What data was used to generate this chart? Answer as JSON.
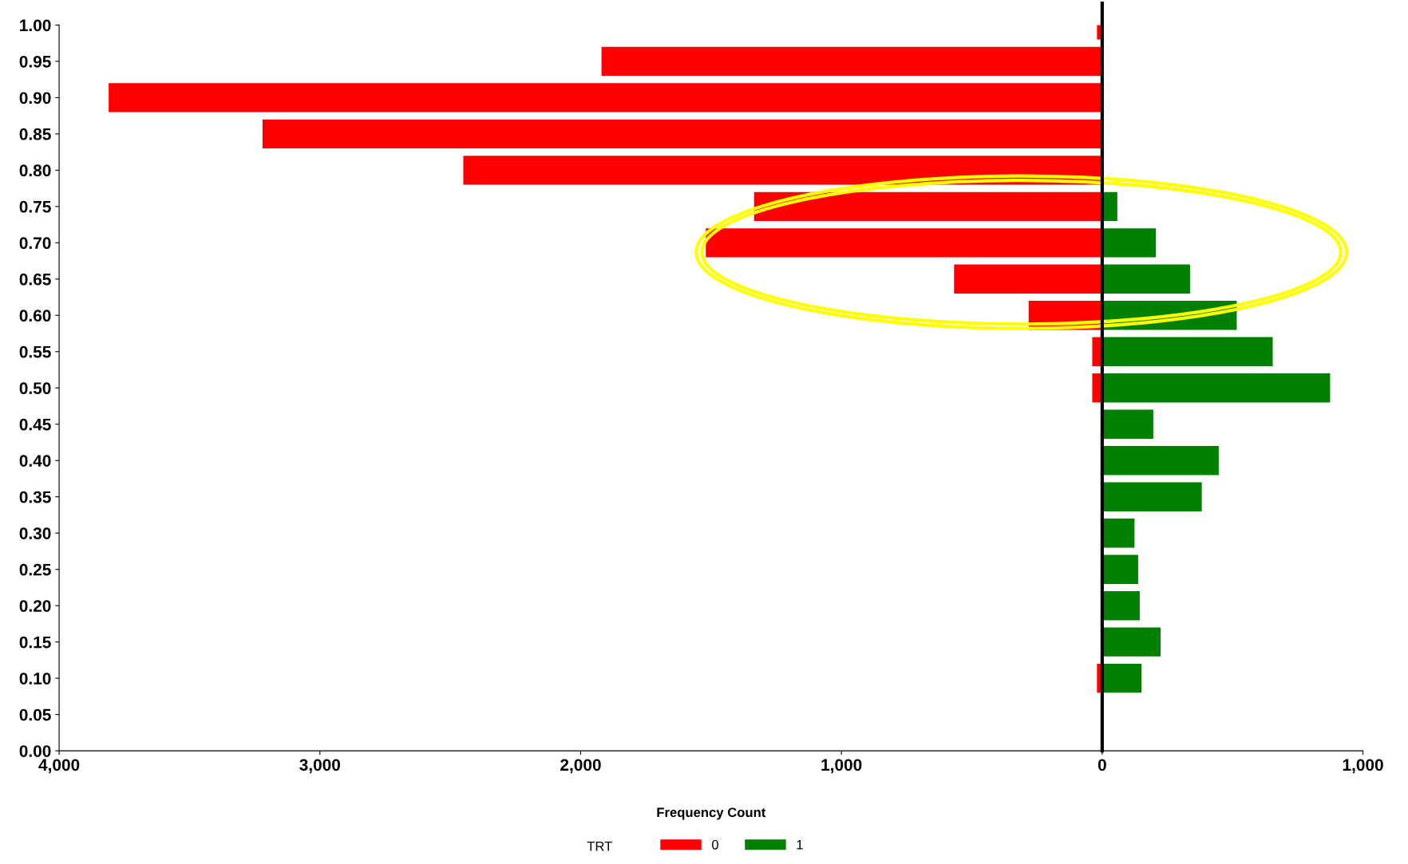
{
  "chart_data": {
    "type": "bar",
    "orientation": "horizontal",
    "xlabel": "Frequency Count",
    "legend_title": "TRT",
    "legend": "bottom",
    "x": [
      0.1,
      0.15,
      0.2,
      0.25,
      0.3,
      0.35,
      0.4,
      0.45,
      0.5,
      0.55,
      0.6,
      0.65,
      0.7,
      0.75,
      0.8,
      0.85,
      0.9,
      0.95,
      1.0
    ],
    "series": [
      {
        "name": "0",
        "color": "#ff0000",
        "values": [
          -20,
          null,
          null,
          null,
          null,
          null,
          null,
          null,
          -38,
          -38,
          -282,
          -568,
          -1520,
          -1335,
          -2450,
          -3220,
          -3810,
          -1920,
          -20
        ]
      },
      {
        "name": "1",
        "color": "#008000",
        "values": [
          151,
          224,
          144,
          138,
          124,
          382,
          447,
          196,
          874,
          654,
          516,
          337,
          206,
          58,
          null,
          null,
          null,
          null,
          null
        ]
      }
    ],
    "xlim": [
      -4000,
      1000
    ],
    "xticks": [
      {
        "value": -4000,
        "label": "4,000"
      },
      {
        "value": -3000,
        "label": "3,000"
      },
      {
        "value": -2000,
        "label": "2,000"
      },
      {
        "value": -1000,
        "label": "1,000"
      },
      0,
      {
        "value": 1000,
        "label": "1,000"
      }
    ],
    "ylim": [
      0,
      1
    ],
    "yticks": [
      {
        "value": 0,
        "label": "0.00"
      },
      {
        "value": 0.05,
        "label": "0.05"
      },
      {
        "value": 0.1,
        "label": "0.10"
      },
      {
        "value": 0.15,
        "label": "0.15"
      },
      {
        "value": 0.2,
        "label": "0.20"
      },
      {
        "value": 0.25,
        "label": "0.25"
      },
      {
        "value": 0.3,
        "label": "0.30"
      },
      {
        "value": 0.35,
        "label": "0.35"
      },
      {
        "value": 0.4,
        "label": "0.40"
      },
      {
        "value": 0.45,
        "label": "0.45"
      },
      {
        "value": 0.5,
        "label": "0.50"
      },
      {
        "value": 0.55,
        "label": "0.55"
      },
      {
        "value": 0.6,
        "label": "0.60"
      },
      {
        "value": 0.65,
        "label": "0.65"
      },
      {
        "value": 0.7,
        "label": "0.70"
      },
      {
        "value": 0.75,
        "label": "0.75"
      },
      {
        "value": 0.8,
        "label": "0.80"
      },
      {
        "value": 0.85,
        "label": "0.85"
      },
      {
        "value": 0.9,
        "label": "0.90"
      },
      {
        "value": 0.95,
        "label": "0.95"
      },
      {
        "value": 1.0,
        "label": "1.00"
      }
    ],
    "ref_lines": [
      {
        "axis": "x",
        "value": 0,
        "color": "#000000"
      }
    ]
  }
}
